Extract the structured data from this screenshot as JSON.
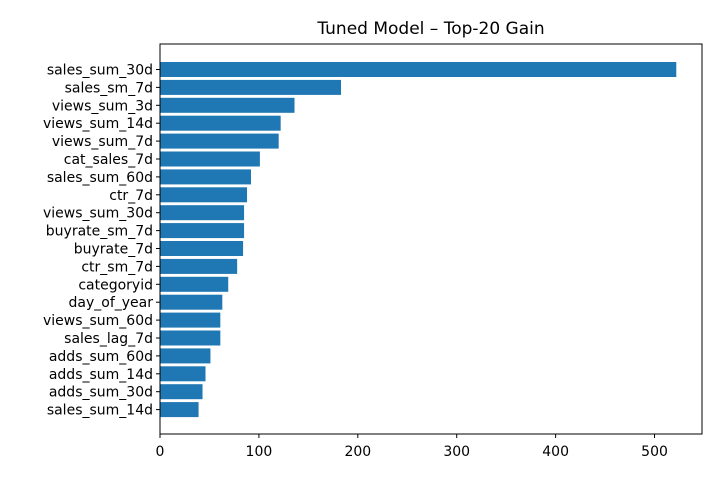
{
  "chart_data": {
    "type": "bar",
    "orientation": "horizontal",
    "title": "Tuned Model – Top-20 Gain",
    "xlabel": "",
    "ylabel": "",
    "categories": [
      "sales_sum_30d",
      "sales_sm_7d",
      "views_sum_3d",
      "views_sum_14d",
      "views_sum_7d",
      "cat_sales_7d",
      "sales_sum_60d",
      "ctr_7d",
      "views_sum_30d",
      "buyrate_sm_7d",
      "buyrate_7d",
      "ctr_sm_7d",
      "categoryid",
      "day_of_year",
      "views_sum_60d",
      "sales_lag_7d",
      "adds_sum_60d",
      "adds_sum_14d",
      "adds_sum_30d",
      "sales_sum_14d"
    ],
    "values": [
      522,
      183,
      136,
      122,
      120,
      101,
      92,
      88,
      85,
      85,
      84,
      78,
      69,
      63,
      61,
      61,
      51,
      46,
      43,
      39
    ],
    "xlim": [
      0,
      548
    ],
    "xticks": [
      0,
      100,
      200,
      300,
      400,
      500
    ],
    "grid": false,
    "colors": {
      "bar": "#1f77b4",
      "axis": "#000000",
      "background": "#ffffff"
    }
  }
}
